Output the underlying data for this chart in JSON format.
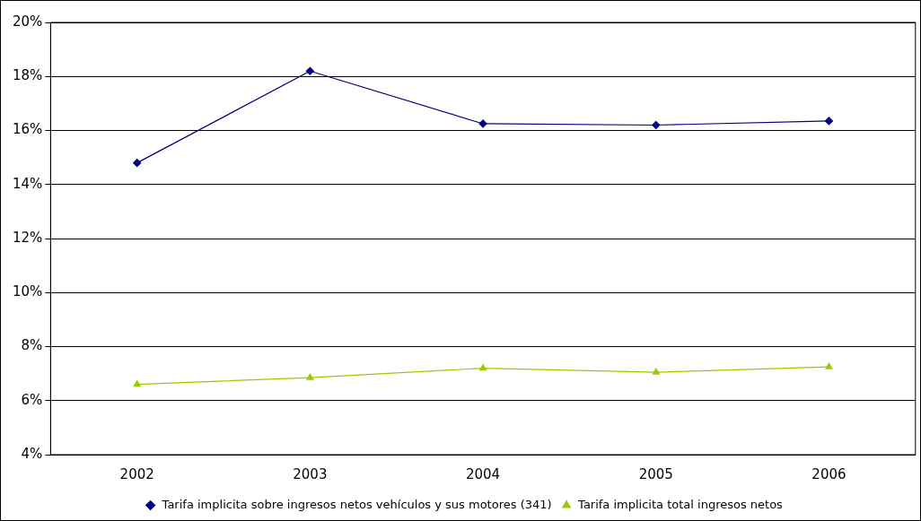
{
  "chart_data": {
    "type": "line",
    "categories": [
      "2002",
      "2003",
      "2004",
      "2005",
      "2006"
    ],
    "series": [
      {
        "name": "Tarifa implicita sobre ingresos netos vehículos y sus motores (341)",
        "color": "#000080",
        "marker": "diamond",
        "values": [
          14.8,
          18.2,
          16.25,
          16.2,
          16.35
        ]
      },
      {
        "name": "Tarifa implicita total ingresos netos",
        "color": "#99cc00",
        "marker": "triangle",
        "values": [
          6.6,
          6.85,
          7.2,
          7.05,
          7.25
        ]
      }
    ],
    "ylim": [
      4,
      20
    ],
    "yticks": [
      {
        "value": 4,
        "label": "4%"
      },
      {
        "value": 6,
        "label": "6%"
      },
      {
        "value": 8,
        "label": "8%"
      },
      {
        "value": 10,
        "label": "10%"
      },
      {
        "value": 12,
        "label": "12%"
      },
      {
        "value": 14,
        "label": "14%"
      },
      {
        "value": 16,
        "label": "16%"
      },
      {
        "value": 18,
        "label": "18%"
      },
      {
        "value": 20,
        "label": "20%"
      }
    ],
    "grid": "y",
    "legend": "bottom"
  }
}
